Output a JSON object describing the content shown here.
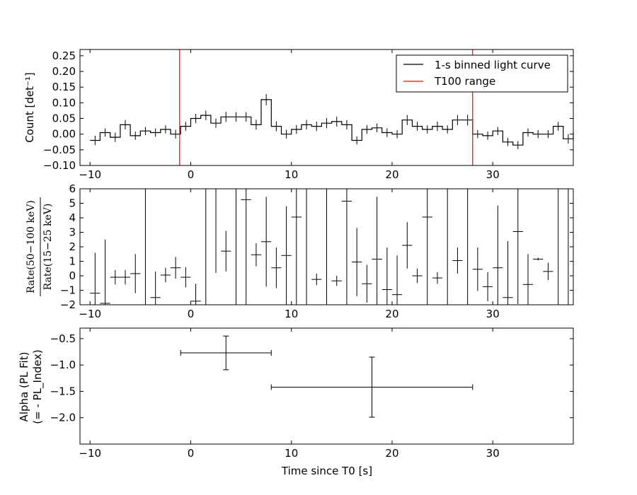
{
  "chart_data": [
    {
      "type": "step",
      "xlim": [
        -11,
        38
      ],
      "ylim": [
        -0.1,
        0.27
      ],
      "yticks": [
        -0.1,
        -0.05,
        0.0,
        0.05,
        0.1,
        0.15,
        0.2,
        0.25
      ],
      "ytick_labels": [
        "−0.10",
        "−0.05",
        "0.00",
        "0.05",
        "0.10",
        "0.15",
        "0.20",
        "0.25"
      ],
      "ylabel": "Count [det⁻¹]",
      "legend": {
        "placement": "upper-right",
        "entries": [
          "1-s binned light curve",
          "T100 range"
        ]
      },
      "series": [
        {
          "name": "1-s binned light curve",
          "color": "#000000",
          "x_start": -10,
          "bin_width": 1,
          "values": [
            -0.02,
            0.005,
            -0.01,
            0.03,
            -0.005,
            0.01,
            0.005,
            0.015,
            0.0,
            0.025,
            0.05,
            0.06,
            0.035,
            0.055,
            0.055,
            0.055,
            0.03,
            0.11,
            0.025,
            0.0,
            0.015,
            0.03,
            0.025,
            0.035,
            0.04,
            0.03,
            -0.02,
            0.015,
            0.02,
            0.005,
            0.0,
            0.045,
            0.025,
            0.015,
            0.025,
            0.015,
            0.045,
            0.045,
            0.0,
            -0.005,
            0.01,
            -0.025,
            -0.035,
            0.005,
            0.0,
            0.0,
            0.025,
            -0.015,
            0.005
          ],
          "errors": [
            0.015,
            0.013,
            0.015,
            0.015,
            0.013,
            0.013,
            0.013,
            0.013,
            0.014,
            0.014,
            0.015,
            0.015,
            0.015,
            0.016,
            0.015,
            0.015,
            0.016,
            0.018,
            0.016,
            0.014,
            0.014,
            0.015,
            0.015,
            0.016,
            0.016,
            0.015,
            0.013,
            0.014,
            0.014,
            0.014,
            0.013,
            0.016,
            0.014,
            0.013,
            0.015,
            0.013,
            0.016,
            0.017,
            0.013,
            0.013,
            0.013,
            0.013,
            0.013,
            0.013,
            0.013,
            0.013,
            0.014,
            0.015,
            0.015
          ]
        },
        {
          "name": "T100 range",
          "color": "#ff0000",
          "x_lines": [
            -1.1,
            28.0
          ]
        }
      ]
    },
    {
      "type": "scatter",
      "xlim": [
        -11,
        38
      ],
      "ylim": [
        -2,
        6
      ],
      "yticks": [
        -2,
        -1,
        0,
        1,
        2,
        3,
        4,
        5,
        6
      ],
      "ytick_labels": [
        "−2",
        "−1",
        "0",
        "1",
        "2",
        "3",
        "4",
        "5",
        "6"
      ],
      "ylabel_top": "Rate(50−100 keV)",
      "ylabel_bottom": "Rate(15−25 keV)",
      "series": [
        {
          "color": "#000000",
          "x": [
            -9.5,
            -8.5,
            -7.5,
            -6.5,
            -5.5,
            -4.5,
            -3.5,
            -2.5,
            -1.5,
            -0.5,
            0.5,
            1.5,
            2.5,
            3.5,
            4.5,
            5.5,
            6.5,
            7.5,
            8.5,
            9.5,
            10.5,
            11.5,
            12.5,
            13.5,
            14.5,
            15.5,
            16.5,
            17.5,
            18.5,
            19.5,
            20.5,
            21.5,
            22.5,
            23.5,
            24.5,
            25.5,
            26.5,
            27.5,
            28.5,
            29.5,
            30.5,
            31.5,
            32.5,
            33.5,
            34.5,
            35.5,
            36.5,
            37.5
          ],
          "values": [
            -1.2,
            -1.9,
            -0.1,
            -0.1,
            0.15,
            6,
            -1.5,
            0.05,
            0.55,
            -0.1,
            -1.75,
            6,
            6,
            1.7,
            6,
            5.25,
            1.45,
            2.35,
            0.55,
            1.4,
            4.05,
            6,
            -0.25,
            6,
            -0.35,
            5.15,
            0.95,
            -0.55,
            1.15,
            -0.95,
            -1.3,
            2.1,
            0.0,
            4.05,
            -0.15,
            6,
            1.05,
            6,
            0.45,
            -0.75,
            0.55,
            -1.5,
            3.05,
            -0.6,
            1.15,
            0.3,
            6,
            6
          ],
          "errors": [
            2.8,
            4.4,
            0.5,
            0.5,
            1.35,
            10,
            1.8,
            0.5,
            0.75,
            0.7,
            1.2,
            10,
            5.8,
            1.4,
            10,
            9.5,
            0.8,
            3.1,
            1.4,
            3.4,
            6.4,
            10,
            0.4,
            10,
            0.35,
            8.5,
            2.35,
            1.3,
            4.3,
            2.9,
            2.7,
            1.6,
            0.5,
            8.1,
            0.4,
            10,
            0.9,
            10,
            1.5,
            1.0,
            4.3,
            3.9,
            5.0,
            2.1,
            0.1,
            0.6,
            10,
            10
          ]
        }
      ]
    },
    {
      "type": "scatter",
      "xlim": [
        -11,
        38
      ],
      "ylim": [
        -2.5,
        -0.3
      ],
      "yticks": [
        -2.0,
        -1.5,
        -1.0,
        -0.5
      ],
      "ytick_labels": [
        "−2.0",
        "−1.5",
        "−1.0",
        "−0.5"
      ],
      "ylabel_line1": "Alpha (PL Fit)",
      "ylabel_line2": "(= - PL_Index)",
      "xlabel": "Time since T0 [s]",
      "xticks": [
        -10,
        0,
        10,
        20,
        30
      ],
      "xtick_labels": [
        "−10",
        "0",
        "10",
        "20",
        "30"
      ],
      "series": [
        {
          "color": "#000000",
          "points": [
            {
              "x": 3.5,
              "x_low": -1.0,
              "x_high": 8.0,
              "y": -0.77,
              "y_err": 0.32
            },
            {
              "x": 18.0,
              "x_low": 8.0,
              "x_high": 28.0,
              "y": -1.42,
              "y_err": 0.57
            }
          ]
        }
      ]
    }
  ]
}
